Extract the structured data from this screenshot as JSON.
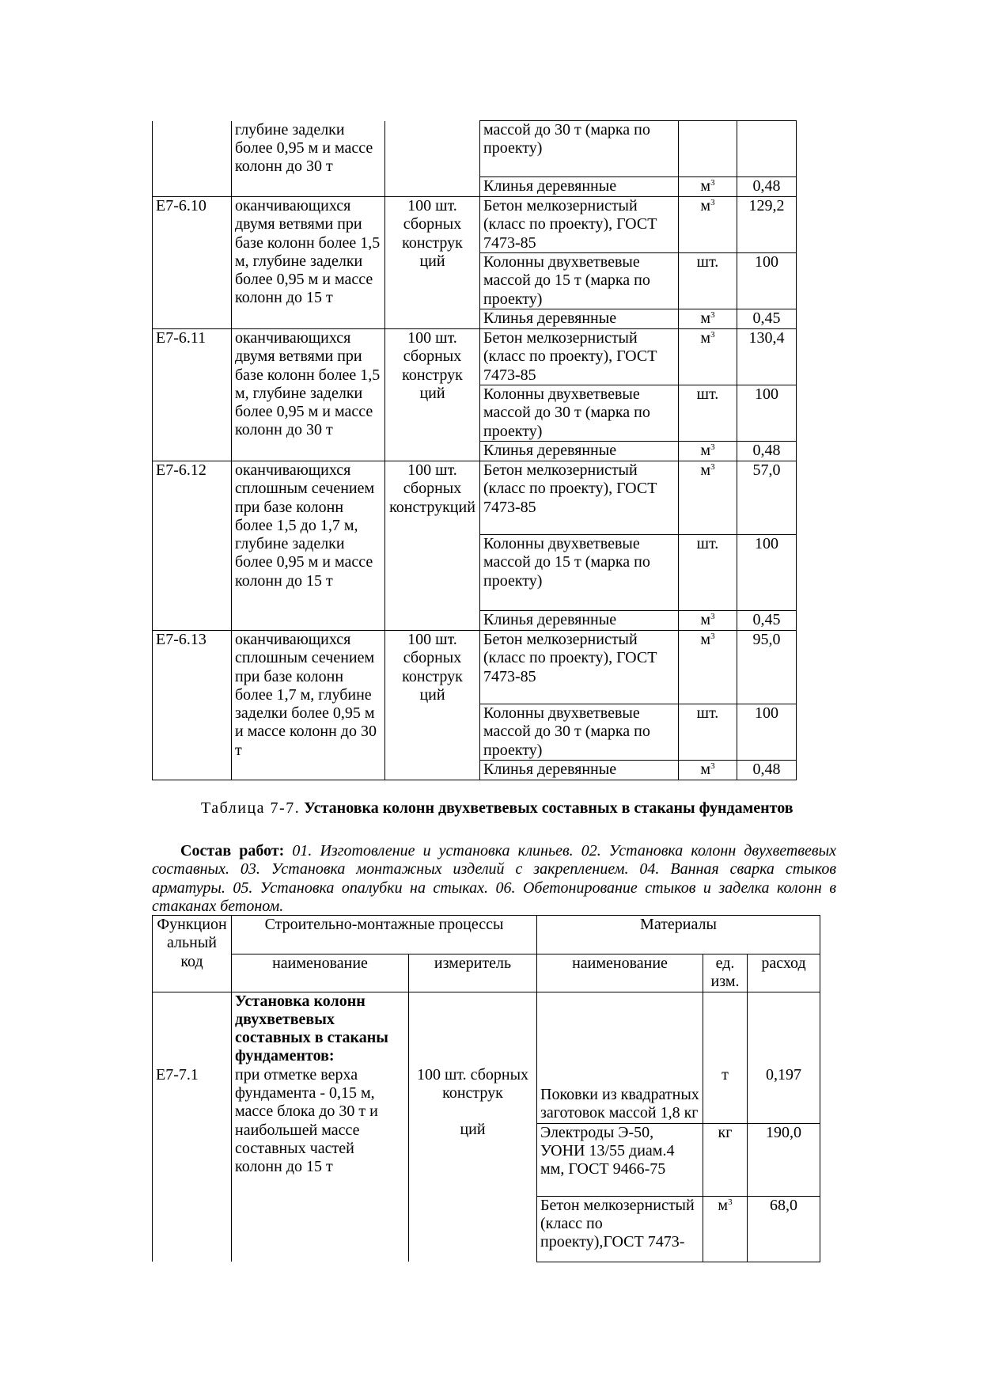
{
  "table1": {
    "continued": {
      "description": "глубине заделки более 0,95 м и массе колонн до 30 т",
      "materials": [
        {
          "name": "массой до 30 т (марка по проекту)",
          "unit": "",
          "amount": ""
        },
        {
          "name": "Клинья деревянные",
          "unit": "м",
          "unit_sup": "3",
          "amount": "0,48"
        }
      ]
    },
    "rows": [
      {
        "code": "Е7-6.10",
        "description": "оканчивающихся двумя ветвями при базе колонн более 1,5 м, глубине заделки более 0,95 м и массе колонн до 15 т",
        "measure": "100 шт. сборных конструк ций",
        "materials": [
          {
            "name": "Бетон мелкозернистый (класс по проекту), ГОСТ 7473-85",
            "unit": "м",
            "unit_sup": "3",
            "amount": "129,2"
          },
          {
            "name": "Колонны двухветвевые массой до 15 т (марка по проекту)",
            "unit": "шт.",
            "amount": "100"
          },
          {
            "name": "Клинья деревянные",
            "unit": "м",
            "unit_sup": "3",
            "amount": "0,45"
          }
        ]
      },
      {
        "code": "Е7-6.11",
        "description": "оканчивающихся двумя ветвями при базе колонн более 1,5 м, глубине заделки более 0,95 м и массе колонн до 30 т",
        "measure": "100 шт. сборных конструк ций",
        "materials": [
          {
            "name": "Бетон мелкозернистый (класс по проекту), ГОСТ 7473-85",
            "unit": "м",
            "unit_sup": "3",
            "amount": "130,4"
          },
          {
            "name": "Колонны двухветвевые массой до 30 т (марка по проекту)",
            "unit": "шт.",
            "amount": "100"
          },
          {
            "name": "Клинья деревянные",
            "unit": "м",
            "unit_sup": "3",
            "amount": "0,48"
          }
        ]
      },
      {
        "code": "Е7-6.12",
        "description": "оканчивающихся сплошным сечением при базе колонн более 1,5 до 1,7 м, глубине заделки более 0,95 м и массе колонн до 15 т",
        "measure": "100 шт. сборных конструкций",
        "materials": [
          {
            "name": "Бетон мелкозернистый (класс по проекту), ГОСТ 7473-85",
            "unit": "м",
            "unit_sup": "3",
            "amount": "57,0"
          },
          {
            "name": "Колонны двухветвевые массой до 15 т (марка по проекту)",
            "unit": "шт.",
            "amount": "100"
          },
          {
            "name": "Клинья деревянные",
            "unit": "м",
            "unit_sup": "3",
            "amount": "0,45"
          }
        ]
      },
      {
        "code": "Е7-6.13",
        "description": "оканчивающихся сплошным сечением при базе колонн более 1,7 м, глубине заделки более 0,95 м и массе колонн до 30 т",
        "measure": "100 шт. сборных конструк ций",
        "materials": [
          {
            "name": "Бетон мелкозернистый (класс по проекту), ГОСТ 7473-85",
            "unit": "м",
            "unit_sup": "3",
            "amount": "95,0"
          },
          {
            "name": "Колонны двухветвевые массой до 30 т (марка по проекту)",
            "unit": "шт.",
            "amount": "100"
          },
          {
            "name": "Клинья деревянные",
            "unit": "м",
            "unit_sup": "3",
            "amount": "0,48"
          }
        ]
      }
    ]
  },
  "caption": {
    "label": "Таблица 7-7.",
    "title": "Установка колонн двухветвевых составных в стаканы фундаментов"
  },
  "work": {
    "label": "Состав работ:",
    "text": "01. Изготовление и установка клиньев. 02. Установка колонн двухветвевых составных. 03. Установка монтажных изделий с закреплением. 04. Ванная сварка стыков арматуры. 05. Установка опалубки на стыках. 06. Обетонирование стыков и заделка колонн в стаканах бетоном."
  },
  "table2": {
    "headers": {
      "code": "Функцион альный код",
      "processes": "Строительно-монтажные процессы",
      "materials": "Материалы",
      "name": "наименование",
      "measure": "измеритель",
      "mat_name": "наименование",
      "unit": "ед. изм.",
      "amount": "расход"
    },
    "row": {
      "code": "Е7-7.1",
      "title": "Установка колонн двухветвевых составных в стаканы фундаментов:",
      "description": "при отметке верха фундамента - 0,15 м, массе блока до 30 т и наибольшей массе составных частей колонн до 15 т",
      "measure_a": "100 шт. сборных конструк",
      "measure_b": "ций",
      "materials": [
        {
          "name": "Поковки из квадратных заготовок массой 1,8 кг",
          "unit": "т",
          "amount": "0,197"
        },
        {
          "name": "Электроды Э-50, УОНИ 13/55 диам.4 мм, ГОСТ 9466-75",
          "unit": "кг",
          "amount": "190,0"
        },
        {
          "name": "Бетон мелкозернистый (класс по проекту),ГОСТ 7473-",
          "unit": "м",
          "unit_sup": "3",
          "amount": "68,0"
        }
      ]
    }
  }
}
